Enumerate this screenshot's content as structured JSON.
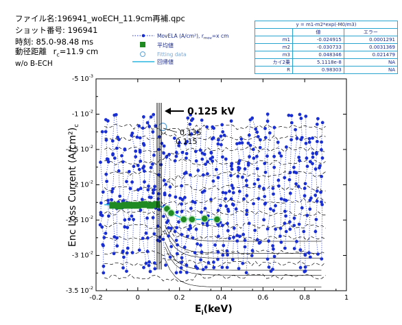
{
  "header": {
    "file_line": "ファイル名:196941_woECH_11.9cm再補.qpc",
    "shot_line": "ショット番号: 196941",
    "time_line": "時刻: 85.0-98.48 ms",
    "radius_label": "動径距離",
    "radius_value": "r",
    "radius_sub": "c",
    "radius_rest": "=11.9 cm",
    "condition": "w/o B-ECH"
  },
  "fit_table": {
    "formula": "y = m1-m2*exp(-M0/m3)",
    "col_value": "値",
    "col_error": "エラー",
    "rows": [
      {
        "name": "m1",
        "value": "-0.024915",
        "error": "0.0001291"
      },
      {
        "name": "m2",
        "value": "-0.030733",
        "error": "0.0031369"
      },
      {
        "name": "m3",
        "value": "0.048346",
        "error": "0.021479"
      },
      {
        "name": "カイ2乗",
        "value": "5.1118e-8",
        "error": "NA"
      },
      {
        "name": "R",
        "value": "0.98303",
        "error": "NA"
      }
    ]
  },
  "legend": {
    "moving_label": "MovELA (A/cm²), r",
    "moving_sub": "mov",
    "moving_rest": "=x cm",
    "mean_label": "平均値",
    "fitting_label": "Fitting data",
    "regression_label": "回帰値"
  },
  "annotations": {
    "voltage": "0.125 kV",
    "v1": "0.135",
    "v2": "0.115"
  },
  "colors": {
    "scatter": "#1a2fd1",
    "mean": "#1f8a22",
    "regression": "#29b6e0",
    "fitting": "#5aa0d8",
    "table_border": "#27a3cf"
  },
  "chart_data": {
    "type": "scatter",
    "xlabel": "E_i(keV)",
    "ylabel": "Enc Loss Current (A/cm²)_c",
    "xlim": [
      -0.2,
      1
    ],
    "ylim": [
      -0.035,
      -0.005
    ],
    "xticks": [
      "-0.2",
      "0",
      "0.2",
      "0.4",
      "0.6",
      "0.8",
      "1"
    ],
    "xtick_values": [
      -0.2,
      0,
      0.2,
      0.4,
      0.6,
      0.8,
      1
    ],
    "yticks": [
      {
        "value": -0.035,
        "mant": "-3.5",
        "exp": "-2"
      },
      {
        "value": -0.03,
        "mant": "-3",
        "exp": "-2"
      },
      {
        "value": -0.025,
        "mant": "-2.5",
        "exp": "-2"
      },
      {
        "value": -0.02,
        "mant": "-2",
        "exp": "-2"
      },
      {
        "value": -0.015,
        "mant": "-1.5",
        "exp": "-2"
      },
      {
        "value": -0.01,
        "mant": "-1",
        "exp": "-2"
      },
      {
        "value": -0.005,
        "mant": "-5",
        "exp": "-3"
      }
    ],
    "grid": false,
    "mean_points": [
      {
        "x": -0.12,
        "y": -0.0229
      },
      {
        "x": -0.09,
        "y": -0.023
      },
      {
        "x": -0.06,
        "y": -0.0229
      },
      {
        "x": -0.03,
        "y": -0.0229
      },
      {
        "x": 0.0,
        "y": -0.0229
      },
      {
        "x": 0.03,
        "y": -0.0228
      },
      {
        "x": 0.06,
        "y": -0.0229
      },
      {
        "x": 0.09,
        "y": -0.0228
      }
    ],
    "fitting_points": [
      {
        "x": 0.14,
        "y": -0.0234
      },
      {
        "x": 0.16,
        "y": -0.024
      },
      {
        "x": 0.22,
        "y": -0.0249
      },
      {
        "x": 0.26,
        "y": -0.0249
      },
      {
        "x": 0.32,
        "y": -0.0248
      },
      {
        "x": 0.38,
        "y": -0.0249
      }
    ],
    "regression": {
      "x_start": -0.16,
      "x_end": 0.4,
      "m1": -0.024915,
      "m2": -0.030733,
      "m3": 0.048346
    }
  }
}
